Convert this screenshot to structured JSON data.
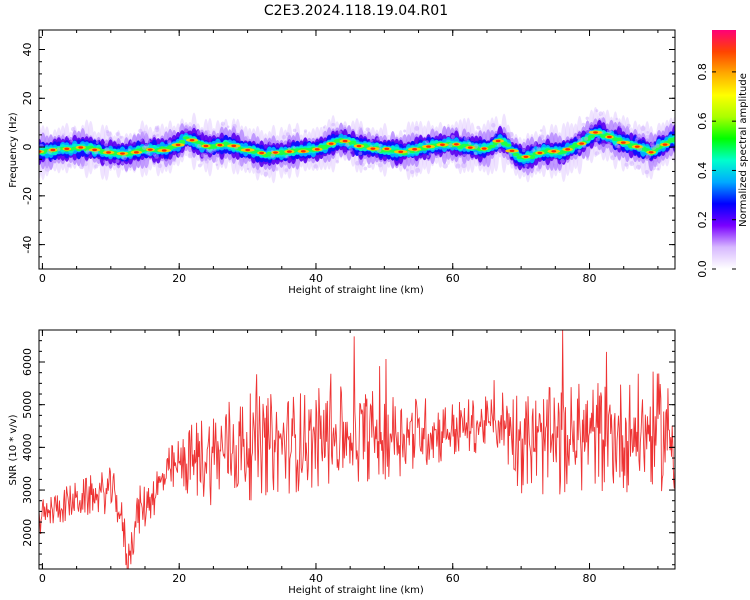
{
  "figure": {
    "title": "C2E3.2024.118.19.04.R01"
  },
  "chart_data": [
    {
      "type": "heatmap",
      "xlabel": "Height of straight line (km)",
      "ylabel": "Frequency (Hz)",
      "xlim": [
        -0.5,
        92.5
      ],
      "ylim": [
        -50,
        48
      ],
      "xticks": [
        0,
        20,
        40,
        60,
        80
      ],
      "yticks": [
        -40,
        -20,
        0,
        20,
        40
      ],
      "grid": false,
      "colorbar": {
        "label": "Normalized spectral amplitude",
        "ticks": [
          0.0,
          0.2,
          0.4,
          0.6,
          0.8
        ],
        "range": [
          0.0,
          0.97
        ],
        "colors": [
          "#ffffff",
          "#d7b8ff",
          "#7a00ff",
          "#0000ff",
          "#00aaff",
          "#00ffcc",
          "#00ff00",
          "#aaff00",
          "#ffff00",
          "#ffaa00",
          "#ff4400",
          "#ff0077"
        ]
      },
      "ridge": {
        "x": [
          0,
          3,
          6,
          9,
          12,
          15,
          18,
          20,
          21,
          24,
          27,
          30,
          33,
          36,
          40,
          42,
          44,
          47,
          50,
          53,
          56,
          58,
          60,
          63,
          65,
          67,
          69,
          70,
          73,
          76,
          79,
          81,
          83,
          86,
          89,
          92
        ],
        "freq": [
          -2,
          -1,
          0,
          -2,
          -3,
          -1,
          -1,
          1,
          4,
          0,
          1,
          -1,
          -3,
          -2,
          -1,
          1,
          3,
          0,
          -1,
          -2,
          0,
          1,
          1,
          0,
          -1,
          3,
          -2,
          -5,
          -2,
          -2,
          2,
          6,
          4,
          1,
          -2,
          3
        ]
      }
    },
    {
      "type": "line",
      "xlabel": "Height of straight line (km)",
      "ylabel": "SNR (10 * v/v)",
      "xlim": [
        -0.5,
        92.5
      ],
      "ylim": [
        1150,
        6750
      ],
      "xticks": [
        0,
        20,
        40,
        60,
        80
      ],
      "yticks": [
        2000,
        3000,
        4000,
        5000,
        6000
      ],
      "grid": false,
      "series": [
        {
          "color": "#ee3333",
          "trend": {
            "x": [
              -0.5,
              2,
              5,
              8,
              10,
              11,
              12,
              12.5,
              13,
              14,
              15,
              16,
              18,
              20,
              22,
              24,
              26,
              28,
              30,
              35,
              40,
              45,
              50,
              55,
              60,
              63,
              66,
              68,
              70,
              72,
              75,
              80,
              85,
              90,
              92.5
            ],
            "snr": [
              2300,
              2600,
              2750,
              2900,
              3000,
              2700,
              1900,
              1250,
              1800,
              2500,
              2600,
              2900,
              3300,
              3600,
              3700,
              3800,
              3900,
              4000,
              4000,
              4100,
              4200,
              4300,
              4300,
              4350,
              4400,
              4500,
              4600,
              4550,
              4200,
              4100,
              4100,
              4300,
              4300,
              4400,
              4200
            ]
          },
          "amplitude": {
            "x": [
              -0.5,
              10,
              16,
              20,
              22,
              24,
              26,
              28,
              32,
              40,
              50,
              60,
              66,
              68,
              70,
              80,
              92.5
            ],
            "amp": [
              300,
              400,
              450,
              500,
              700,
              850,
              950,
              1000,
              900,
              900,
              800,
              550,
              450,
              800,
              950,
              1000,
              1050
            ]
          },
          "samples": 900,
          "max": 6800
        }
      ]
    }
  ]
}
